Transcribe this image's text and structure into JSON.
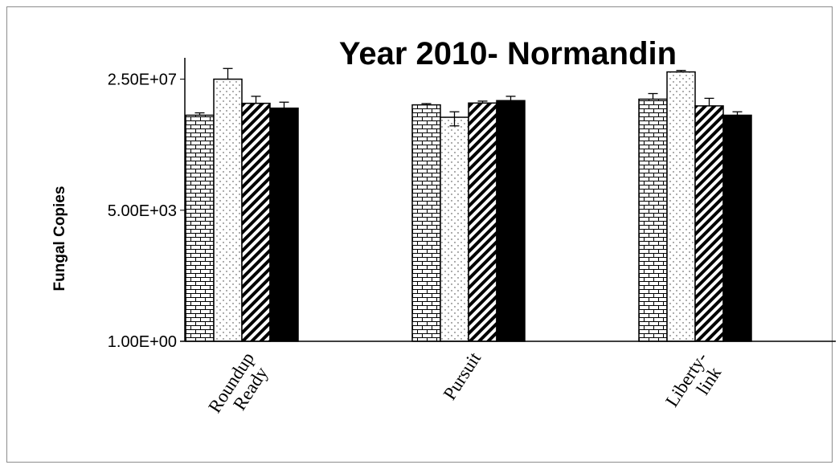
{
  "chart_data": {
    "type": "bar",
    "title": "Year 2010- Normandin",
    "ylabel": "Fungal Copies",
    "xlabel": "",
    "yscale": "log",
    "ylim": [
      1,
      100000000
    ],
    "yticks": [
      {
        "value": 1,
        "label": "1.00E+00"
      },
      {
        "value": 5000,
        "label": "5.00E+03"
      },
      {
        "value": 25000000,
        "label": "2.50E+07"
      }
    ],
    "categories": [
      {
        "label_lines": [
          "Roundup",
          "Ready"
        ]
      },
      {
        "label_lines": [
          "Pursuit"
        ]
      },
      {
        "label_lines": [
          "Liberty-",
          "link"
        ]
      }
    ],
    "series": [
      {
        "pattern": "brick",
        "values": [
          2400000,
          4700000,
          6800000
        ],
        "errors": [
          400000,
          400000,
          3000000
        ]
      },
      {
        "pattern": "dots",
        "values": [
          25000000,
          2100000,
          40000000
        ],
        "errors": [
          25000000,
          900000,
          4000000
        ]
      },
      {
        "pattern": "diagonal",
        "values": [
          5200000,
          5300000,
          4400000
        ],
        "errors": [
          3000000,
          700000,
          2800000
        ]
      },
      {
        "pattern": "solid",
        "values": [
          3800000,
          6200000,
          2400000
        ],
        "errors": [
          1800000,
          2000000,
          600000
        ]
      }
    ],
    "grid": false,
    "legend": "none"
  }
}
